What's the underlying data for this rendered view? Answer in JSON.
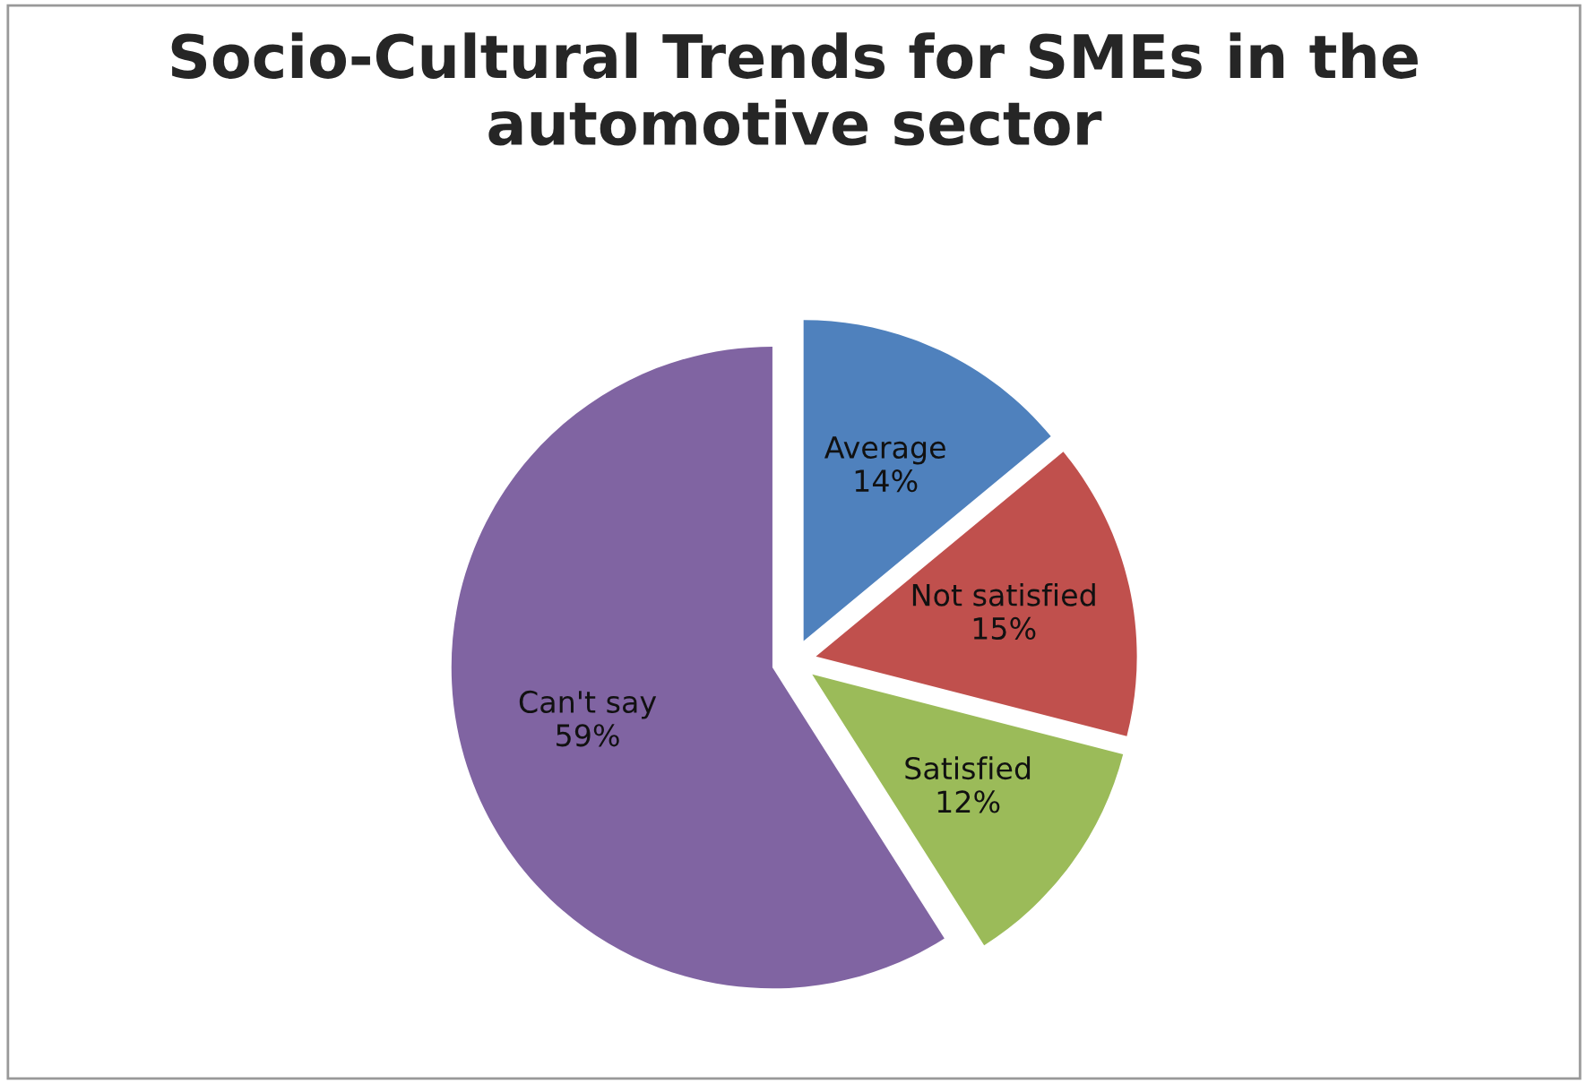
{
  "chart_data": {
    "type": "pie",
    "title": "Socio-Cultural Trends for SMEs in the automotive sector",
    "categories": [
      "Average",
      "Not satisfied",
      "Satisfied",
      "Can't say"
    ],
    "values": [
      14,
      15,
      12,
      59
    ],
    "value_labels": [
      "14%",
      "15%",
      "12%",
      "59%"
    ],
    "colors": [
      "#4f81bd",
      "#c0504d",
      "#9bbb59",
      "#8064a2"
    ],
    "legend": false
  }
}
